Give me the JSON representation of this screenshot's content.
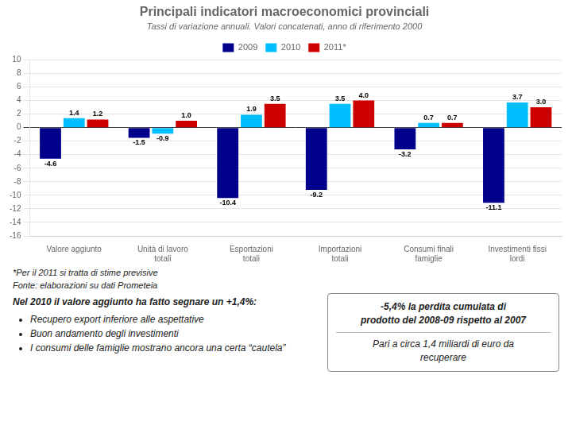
{
  "chart_data": {
    "type": "bar",
    "title": "Principali indicatori macroeconomici provinciali",
    "subtitle": "Tassi di variazione annuali. Valori concatenati, anno di riferimento 2000",
    "categories": [
      "Valore aggiunto",
      "Unità di lavoro\ntotali",
      "Esportazioni\ntotali",
      "Importazioni\ntotali",
      "Consumi finali\nfamiglie",
      "Investimenti fissi\nlordi"
    ],
    "series": [
      {
        "name": "2009",
        "color": "#00008B",
        "values": [
          -4.6,
          -1.5,
          -10.4,
          -9.2,
          -3.2,
          -11.1
        ]
      },
      {
        "name": "2010",
        "color": "#00BFFF",
        "values": [
          1.4,
          -0.9,
          1.9,
          3.5,
          0.7,
          3.7
        ]
      },
      {
        "name": "2011*",
        "color": "#CC0000",
        "values": [
          1.2,
          1.0,
          3.5,
          4.0,
          0.7,
          3.0
        ],
        "value_labels": [
          "1.2",
          "1.0",
          "3.5",
          "4.0",
          "0.7",
          "3.0"
        ]
      }
    ],
    "ylim": [
      -16,
      10
    ],
    "yticks": [
      -16,
      -14,
      -12,
      -10,
      -8,
      -6,
      -4,
      -2,
      0,
      2,
      4,
      6,
      8,
      10
    ],
    "grid": true,
    "legend": "top",
    "data_labels": true,
    "annotations": [
      "*Per il 2011 si tratta di stime previsive",
      "Fonte: elaborazioni su dati Prometeia",
      "Nel 2010 il valore aggiunto ha fatto segnare un +1,4%:",
      "Recupero export inferiore alle aspettative",
      "Buon andamento degli investimenti",
      "I consumi delle famiglie mostrano ancora una certa “cautela”",
      "-5,4% la perdita cumulata di\nprodotto del 2008-09 rispetto al 2007",
      "Pari a circa 1,4 miliardi di euro da\nrecuperare"
    ]
  }
}
